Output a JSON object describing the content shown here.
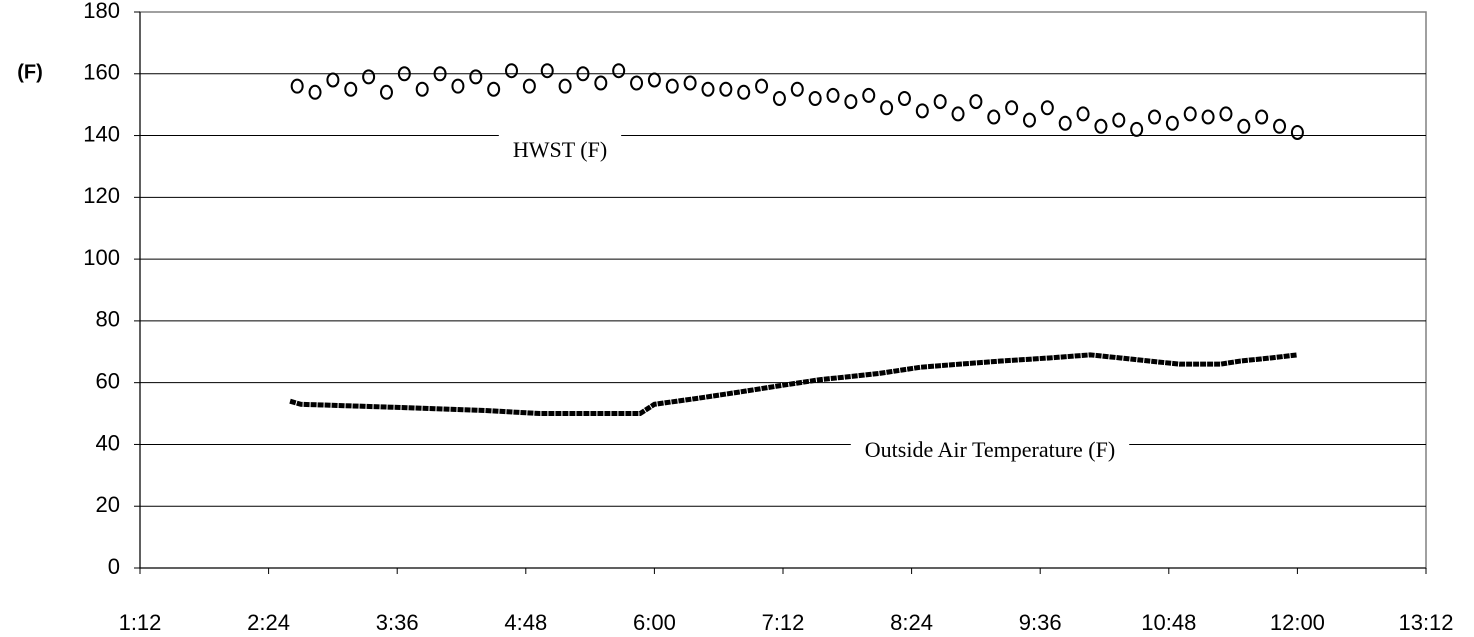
{
  "chart_data": {
    "type": "scatter",
    "y_label": "(F)",
    "xlim": [
      72,
      792
    ],
    "xticks": [
      {
        "value": 72,
        "label": "1:12"
      },
      {
        "value": 144,
        "label": "2:24"
      },
      {
        "value": 216,
        "label": "3:36"
      },
      {
        "value": 288,
        "label": "4:48"
      },
      {
        "value": 360,
        "label": "6:00"
      },
      {
        "value": 432,
        "label": "7:12"
      },
      {
        "value": 504,
        "label": "8:24"
      },
      {
        "value": 576,
        "label": "9:36"
      },
      {
        "value": 648,
        "label": "10:48"
      },
      {
        "value": 720,
        "label": "12:00"
      },
      {
        "value": 792,
        "label": "13:12"
      }
    ],
    "ylim": [
      0,
      180
    ],
    "yticks": [
      0,
      20,
      40,
      60,
      80,
      100,
      120,
      140,
      160,
      180
    ],
    "grid": true,
    "annotations": [
      "HWST (F)",
      "Outside Air Temperature (F)"
    ],
    "series": [
      {
        "name": "HWST (F)",
        "type": "scatter",
        "color": "#000000",
        "x": [
          160,
          170,
          180,
          190,
          200,
          210,
          220,
          230,
          240,
          250,
          260,
          270,
          280,
          290,
          300,
          310,
          320,
          330,
          340,
          350,
          360,
          370,
          380,
          390,
          400,
          410,
          420,
          430,
          440,
          450,
          460,
          470,
          480,
          490,
          500,
          510,
          520,
          530,
          540,
          550,
          560,
          570,
          580,
          590,
          600,
          610,
          620,
          630,
          640,
          650,
          660,
          670,
          680,
          690,
          700,
          710,
          720
        ],
        "values": [
          156,
          154,
          158,
          155,
          159,
          154,
          160,
          155,
          160,
          156,
          159,
          155,
          161,
          156,
          161,
          156,
          160,
          157,
          161,
          157,
          158,
          156,
          157,
          155,
          155,
          154,
          156,
          152,
          155,
          152,
          153,
          151,
          153,
          149,
          152,
          148,
          151,
          147,
          151,
          146,
          149,
          145,
          149,
          144,
          147,
          143,
          145,
          142,
          146,
          144,
          147,
          146,
          147,
          143,
          146,
          143,
          141
        ]
      },
      {
        "name": "Outside Air Temperature (F)",
        "type": "line",
        "color": "#000000",
        "x": [
          156,
          162,
          216,
          265,
          296,
          352,
          360,
          385,
          408,
          430,
          453,
          470,
          486,
          509,
          531,
          554,
          581,
          604,
          621,
          637,
          654,
          677,
          688,
          705,
          720
        ],
        "values": [
          54,
          53,
          52,
          51,
          50,
          50,
          53,
          55,
          57,
          59,
          61,
          62,
          63,
          65,
          66,
          67,
          68,
          69,
          68,
          67,
          66,
          66,
          67,
          68,
          69
        ]
      }
    ]
  }
}
